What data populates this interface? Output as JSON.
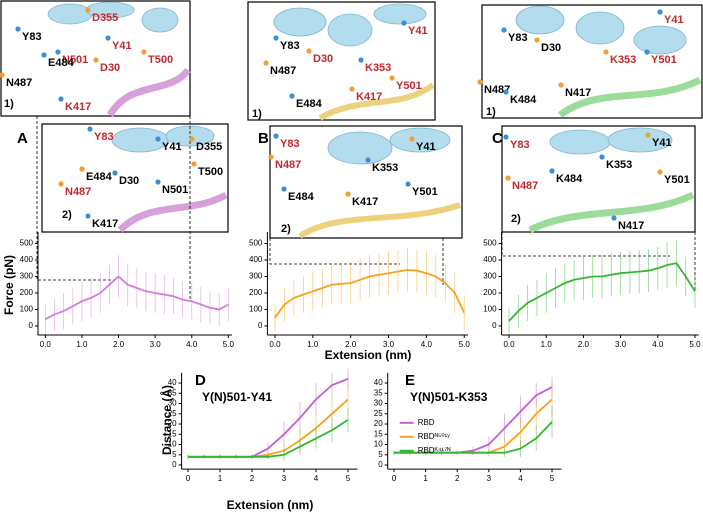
{
  "panel_labels": [
    "A",
    "B",
    "C",
    "D",
    "E"
  ],
  "insets": [
    {
      "tag": "1)",
      "labels": [
        {
          "text": "Y83",
          "color": "#000000"
        },
        {
          "text": "D355",
          "color": "#c0282d"
        },
        {
          "text": "Y41",
          "color": "#c0282d"
        },
        {
          "text": "D30",
          "color": "#c0282d"
        },
        {
          "text": "N501",
          "color": "#c0282d"
        },
        {
          "text": "T500",
          "color": "#c0282d"
        },
        {
          "text": "E484",
          "color": "#000000"
        },
        {
          "text": "N487",
          "color": "#000000"
        },
        {
          "text": "K417",
          "color": "#c0282d"
        }
      ]
    },
    {
      "tag": "1)",
      "labels": [
        {
          "text": "Y83",
          "color": "#000000"
        },
        {
          "text": "D30",
          "color": "#c0282d"
        },
        {
          "text": "Y41",
          "color": "#c0282d"
        },
        {
          "text": "N487",
          "color": "#000000"
        },
        {
          "text": "K353",
          "color": "#c0282d"
        },
        {
          "text": "Y501",
          "color": "#c0282d"
        },
        {
          "text": "E484",
          "color": "#000000"
        },
        {
          "text": "K417",
          "color": "#c0282d"
        }
      ]
    },
    {
      "tag": "1)",
      "labels": [
        {
          "text": "Y83",
          "color": "#000000"
        },
        {
          "text": "D30",
          "color": "#000000"
        },
        {
          "text": "Y41",
          "color": "#c0282d"
        },
        {
          "text": "K353",
          "color": "#c0282d"
        },
        {
          "text": "Y501",
          "color": "#c0282d"
        },
        {
          "text": "N487",
          "color": "#000000"
        },
        {
          "text": "K484",
          "color": "#000000"
        },
        {
          "text": "N417",
          "color": "#000000"
        }
      ]
    },
    {
      "tag": "2)",
      "labels": [
        {
          "text": "Y83",
          "color": "#c0282d"
        },
        {
          "text": "D355",
          "color": "#000000"
        },
        {
          "text": "Y41",
          "color": "#000000"
        },
        {
          "text": "E484",
          "color": "#000000"
        },
        {
          "text": "D30",
          "color": "#000000"
        },
        {
          "text": "N487",
          "color": "#c0282d"
        },
        {
          "text": "N501",
          "color": "#000000"
        },
        {
          "text": "T500",
          "color": "#000000"
        },
        {
          "text": "K417",
          "color": "#000000"
        }
      ]
    },
    {
      "tag": "2)",
      "labels": [
        {
          "text": "Y83",
          "color": "#c0282d"
        },
        {
          "text": "N487",
          "color": "#c0282d"
        },
        {
          "text": "K353",
          "color": "#000000"
        },
        {
          "text": "Y41",
          "color": "#000000"
        },
        {
          "text": "E484",
          "color": "#000000"
        },
        {
          "text": "K417",
          "color": "#000000"
        },
        {
          "text": "Y501",
          "color": "#000000"
        }
      ]
    },
    {
      "tag": "2)",
      "labels": [
        {
          "text": "Y83",
          "color": "#c0282d"
        },
        {
          "text": "Y41",
          "color": "#000000"
        },
        {
          "text": "K353",
          "color": "#000000"
        },
        {
          "text": "N487",
          "color": "#c0282d"
        },
        {
          "text": "K484",
          "color": "#000000"
        },
        {
          "text": "Y501",
          "color": "#000000"
        },
        {
          "text": "N417",
          "color": "#000000"
        }
      ]
    }
  ],
  "chart_data": [
    {
      "type": "line",
      "ylabel": "Force (pN)",
      "x": [
        0,
        0.25,
        0.5,
        0.75,
        1,
        1.25,
        1.5,
        1.75,
        2,
        2.25,
        2.5,
        2.75,
        3,
        3.25,
        3.5,
        3.75,
        4,
        4.25,
        4.5,
        4.75,
        5
      ],
      "series": [
        {
          "color": "#d27ddc",
          "values": [
            40,
            70,
            90,
            120,
            150,
            170,
            200,
            250,
            300,
            250,
            230,
            210,
            200,
            190,
            180,
            160,
            150,
            130,
            110,
            100,
            130
          ],
          "errors": [
            90,
            100,
            110,
            110,
            120,
            120,
            120,
            120,
            130,
            130,
            120,
            120,
            120,
            120,
            110,
            110,
            110,
            110,
            100,
            100,
            100
          ]
        }
      ],
      "xlim": [
        -0.2,
        5.1
      ],
      "ylim": [
        -55,
        570
      ],
      "xticks": [
        {
          "value": 0,
          "label": "0.0"
        },
        {
          "value": 1,
          "label": "1.0"
        },
        {
          "value": 2,
          "label": "2.0"
        },
        {
          "value": 3,
          "label": "3.0"
        },
        {
          "value": 4,
          "label": "4.0"
        },
        {
          "value": 5,
          "label": "5.0"
        }
      ],
      "yticks": [
        0,
        100,
        200,
        300,
        400,
        500
      ]
    },
    {
      "type": "line",
      "xlabel": "Extension (nm)",
      "x": [
        0,
        0.25,
        0.5,
        0.75,
        1,
        1.25,
        1.5,
        1.75,
        2,
        2.25,
        2.5,
        2.75,
        3,
        3.25,
        3.5,
        3.75,
        4,
        4.25,
        4.5,
        4.75,
        5
      ],
      "series": [
        {
          "color": "#f5a21d",
          "values": [
            50,
            130,
            170,
            190,
            210,
            230,
            250,
            255,
            260,
            280,
            300,
            310,
            320,
            330,
            340,
            335,
            320,
            300,
            260,
            200,
            80
          ],
          "errors": [
            80,
            100,
            110,
            110,
            120,
            120,
            120,
            120,
            130,
            130,
            130,
            130,
            130,
            130,
            130,
            130,
            130,
            130,
            120,
            120,
            100
          ]
        }
      ],
      "xlim": [
        -0.2,
        5.1
      ],
      "ylim": [
        -55,
        570
      ],
      "xticks": [
        {
          "value": 0,
          "label": "0.0"
        },
        {
          "value": 1,
          "label": "1.0"
        },
        {
          "value": 2,
          "label": "2.0"
        },
        {
          "value": 3,
          "label": "3.0"
        },
        {
          "value": 4,
          "label": "4.0"
        },
        {
          "value": 5,
          "label": "5.0"
        }
      ],
      "yticks": [
        0,
        100,
        200,
        300,
        400,
        500
      ]
    },
    {
      "type": "line",
      "x": [
        0,
        0.25,
        0.5,
        0.75,
        1,
        1.25,
        1.5,
        1.75,
        2,
        2.25,
        2.5,
        2.75,
        3,
        3.25,
        3.5,
        3.75,
        4,
        4.25,
        4.5,
        4.75,
        5
      ],
      "series": [
        {
          "color": "#34b634",
          "values": [
            30,
            90,
            140,
            170,
            200,
            230,
            260,
            280,
            290,
            300,
            300,
            310,
            320,
            325,
            330,
            335,
            350,
            370,
            380,
            300,
            210
          ],
          "errors": [
            80,
            100,
            110,
            110,
            120,
            120,
            120,
            120,
            130,
            130,
            130,
            130,
            130,
            130,
            130,
            130,
            130,
            140,
            140,
            120,
            100
          ]
        }
      ],
      "xlim": [
        -0.2,
        5.1
      ],
      "ylim": [
        -55,
        570
      ],
      "xticks": [
        {
          "value": 0,
          "label": "0.0"
        },
        {
          "value": 1,
          "label": "1.0"
        },
        {
          "value": 2,
          "label": "2.0"
        },
        {
          "value": 3,
          "label": "3.0"
        },
        {
          "value": 4,
          "label": "4.0"
        },
        {
          "value": 5,
          "label": "5.0"
        }
      ],
      "yticks": [
        0,
        100,
        200,
        300,
        400,
        500
      ]
    },
    {
      "type": "line",
      "title": "Y(N)501-Y41",
      "ylabel": "Distance (Å)",
      "xlabel": "Extension (nm)",
      "x": [
        0,
        0.5,
        1,
        1.5,
        2,
        2.5,
        3,
        3.5,
        4,
        4.5,
        5
      ],
      "series": [
        {
          "color": "#c25fd6",
          "values": [
            4,
            4,
            4,
            4,
            4,
            8,
            15,
            23,
            32,
            39,
            42
          ],
          "errors": [
            1,
            1,
            1,
            1,
            1,
            3,
            6,
            8,
            8,
            6,
            5
          ]
        },
        {
          "color": "#f5a21d",
          "values": [
            4,
            4,
            4,
            4,
            4,
            5,
            7,
            12,
            18,
            25,
            32
          ],
          "errors": [
            1,
            1,
            1,
            1,
            1,
            2,
            4,
            6,
            7,
            8,
            8
          ]
        },
        {
          "color": "#34b634",
          "values": [
            4,
            4,
            4,
            4,
            4,
            4,
            5,
            9,
            13,
            17,
            22
          ],
          "errors": [
            1,
            1,
            1,
            1,
            1,
            1,
            3,
            4,
            5,
            6,
            6
          ]
        }
      ],
      "xlim": [
        -0.2,
        5.3
      ],
      "ylim": [
        -2,
        45
      ],
      "xticks": [
        0,
        1,
        2,
        3,
        4,
        5
      ],
      "yticks": [
        0,
        5,
        10,
        15,
        20,
        25,
        30,
        35,
        40
      ]
    },
    {
      "type": "line",
      "title": "Y(N)501-K353",
      "legend": "upper left",
      "x": [
        0,
        0.5,
        1,
        1.5,
        2,
        2.5,
        3,
        3.5,
        4,
        4.5,
        5
      ],
      "series": [
        {
          "name": "RBD",
          "color": "#c25fd6",
          "values": [
            6,
            6,
            6,
            6,
            6,
            7,
            10,
            18,
            26,
            34,
            38
          ],
          "errors": [
            1,
            1,
            1,
            1,
            1,
            2,
            4,
            7,
            8,
            6,
            5
          ]
        },
        {
          "name": "RBDᴺ⁵⁰¹ʸ",
          "color": "#f5a21d",
          "values": [
            6,
            6,
            6,
            6,
            6,
            6,
            6,
            9,
            16,
            25,
            32
          ],
          "errors": [
            1,
            1,
            1,
            1,
            1,
            1,
            2,
            4,
            7,
            8,
            8
          ]
        },
        {
          "name": "RBDᴷ⁴¹⁷ᴺ",
          "color": "#34b634",
          "values": [
            6,
            6,
            6,
            6,
            6,
            6,
            6,
            6,
            8,
            13,
            21
          ],
          "errors": [
            1,
            1,
            1,
            1,
            1,
            1,
            1,
            2,
            4,
            6,
            8
          ]
        }
      ],
      "xlim": [
        -0.2,
        5.3
      ],
      "ylim": [
        -2,
        45
      ],
      "xticks": [
        0,
        1,
        2,
        3,
        4,
        5
      ],
      "yticks": [
        0,
        5,
        10,
        15,
        20,
        25,
        30,
        35,
        40
      ]
    }
  ]
}
